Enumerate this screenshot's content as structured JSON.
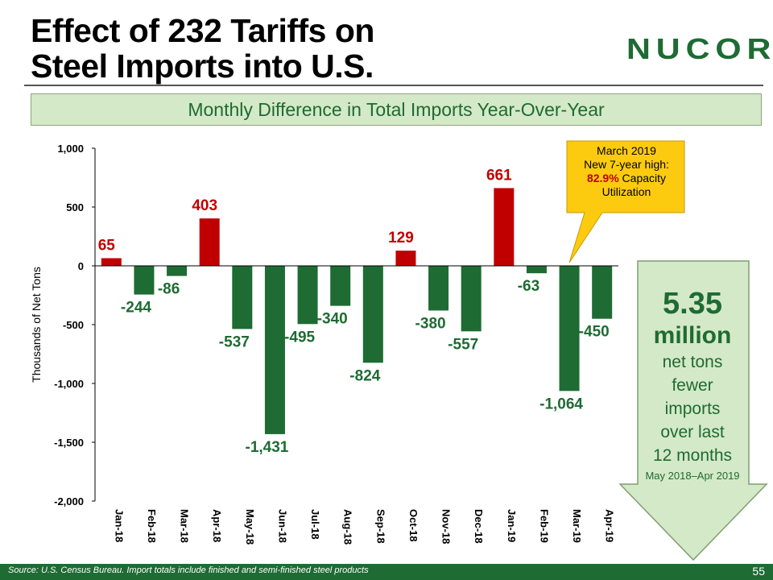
{
  "header": {
    "title_line1": "Effect of 232 Tariffs on",
    "title_line2": "Steel Imports into U.S.",
    "logo": "NUCOR",
    "logo_mark": "®"
  },
  "subtitle": "Monthly Difference in Total Imports Year-Over-Year",
  "callout": {
    "line1": "March 2019",
    "line2": "New 7-year high:",
    "highlight": "82.9%",
    "line3_rest": " Capacity",
    "line4": "Utilization"
  },
  "summary": {
    "value": "5.35",
    "unit": "million",
    "line1": "net tons",
    "line2": "fewer",
    "line3": "imports",
    "line4": "over last",
    "line5": "12 months",
    "period": "May 2018–Apr 2019"
  },
  "footer": {
    "source": "Source: U.S. Census Bureau. Import totals include finished and semi-finished steel products",
    "page": "55"
  },
  "colors": {
    "positive": "#c00000",
    "negative": "#1e6b33",
    "accent_green": "#1e6b33"
  },
  "chart_data": {
    "type": "bar",
    "title": "Monthly Difference in Total Imports Year-Over-Year",
    "xlabel": "",
    "ylabel": "Thousands of Net Tons",
    "ylim": [
      -2000,
      1000
    ],
    "yticks": [
      1000,
      500,
      0,
      -500,
      -1000,
      -1500,
      -2000
    ],
    "ytick_labels": [
      "1,000",
      "500",
      "0",
      "-500",
      "-1,000",
      "-1,500",
      "-2,000"
    ],
    "categories": [
      "Jan-18",
      "Feb-18",
      "Mar-18",
      "Apr-18",
      "May-18",
      "Jun-18",
      "Jul-18",
      "Aug-18",
      "Sep-18",
      "Oct-18",
      "Nov-18",
      "Dec-18",
      "Jan-19",
      "Feb-19",
      "Mar-19",
      "Apr-19"
    ],
    "values": [
      65,
      -244,
      -86,
      403,
      -537,
      -1431,
      -495,
      -340,
      -824,
      129,
      -380,
      -557,
      661,
      -63,
      -1064,
      -450
    ],
    "labels": [
      "65",
      "-244",
      "-86",
      "403",
      "-537",
      "-1,431",
      "-495",
      "-340",
      "-824",
      "129",
      "-380",
      "-557",
      "661",
      "-63",
      "-1,064",
      "-450"
    ]
  }
}
